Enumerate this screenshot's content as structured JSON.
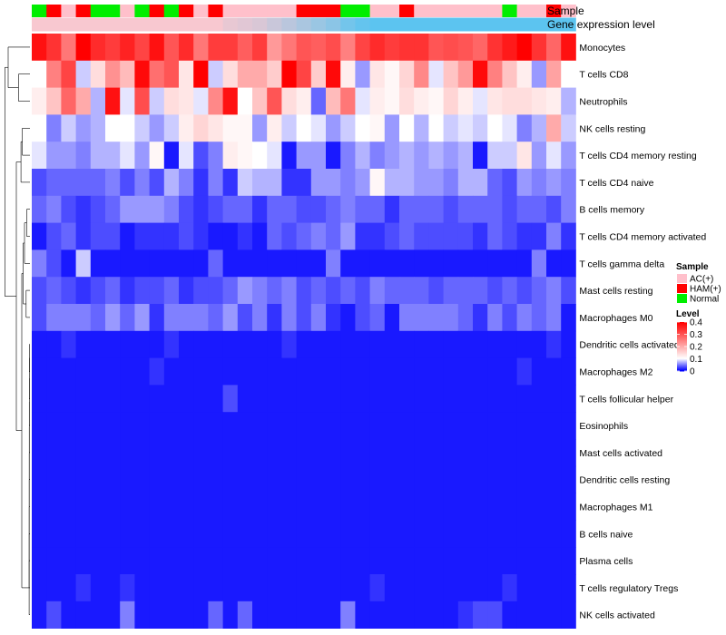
{
  "chart_data": {
    "type": "heatmap",
    "title": "",
    "xlabel": "",
    "ylabel": "",
    "annotation_labels": {
      "sample": "Sample",
      "gene_expression": "Gene expression level"
    },
    "legend": {
      "sample_title": "Sample",
      "sample_entries": [
        {
          "name": "AC(+)",
          "color": "#ffc0cb"
        },
        {
          "name": "HAM(+)",
          "color": "#ff0000"
        },
        {
          "name": "Normal",
          "color": "#00ee00"
        }
      ],
      "level_title": "Level",
      "level_ticks": [
        "0.4",
        "0.3",
        "0.2",
        "0.1",
        "0"
      ],
      "scale": {
        "min": 0,
        "max": 0.4,
        "low_color": "#0000ff",
        "mid_value": 0.1,
        "mid_color": "#ffffff",
        "high_color": "#ff0000"
      }
    },
    "sample_groups": [
      "Normal",
      "HAM(+)",
      "AC(+)",
      "HAM(+)",
      "Normal",
      "Normal",
      "AC(+)",
      "Normal",
      "HAM(+)",
      "Normal",
      "HAM(+)",
      "AC(+)",
      "HAM(+)",
      "AC(+)",
      "AC(+)",
      "AC(+)",
      "AC(+)",
      "AC(+)",
      "HAM(+)",
      "HAM(+)",
      "HAM(+)",
      "Normal",
      "Normal",
      "AC(+)",
      "AC(+)",
      "HAM(+)",
      "AC(+)",
      "AC(+)",
      "AC(+)",
      "AC(+)",
      "AC(+)",
      "AC(+)",
      "Normal",
      "AC(+)",
      "AC(+)",
      "HAM(+)",
      "AC(+)"
    ],
    "rows": [
      {
        "name": "Monocytes",
        "values": [
          0.38,
          0.34,
          0.26,
          0.4,
          0.35,
          0.33,
          0.36,
          0.32,
          0.38,
          0.3,
          0.35,
          0.26,
          0.33,
          0.33,
          0.29,
          0.33,
          0.22,
          0.26,
          0.3,
          0.29,
          0.31,
          0.25,
          0.32,
          0.35,
          0.33,
          0.34,
          0.34,
          0.3,
          0.31,
          0.3,
          0.28,
          0.34,
          0.37,
          0.4,
          0.34,
          0.28,
          0.38
        ]
      },
      {
        "name": "T cells CD8",
        "values": [
          0.1,
          0.25,
          0.32,
          0.08,
          0.14,
          0.23,
          0.18,
          0.39,
          0.27,
          0.3,
          0.13,
          0.4,
          0.08,
          0.14,
          0.2,
          0.2,
          0.16,
          0.4,
          0.32,
          0.16,
          0.39,
          0.12,
          0.06,
          0.13,
          0.11,
          0.15,
          0.24,
          0.09,
          0.17,
          0.22,
          0.39,
          0.25,
          0.17,
          0.12,
          0.06,
          0.21,
          0.1
        ]
      },
      {
        "name": "Neutrophils",
        "values": [
          0.12,
          0.17,
          0.28,
          0.2,
          0.07,
          0.38,
          0.09,
          0.31,
          0.08,
          0.14,
          0.13,
          0.09,
          0.24,
          0.38,
          0.1,
          0.17,
          0.3,
          0.14,
          0.12,
          0.04,
          0.18,
          0.26,
          0.09,
          0.12,
          0.11,
          0.14,
          0.12,
          0.11,
          0.15,
          0.12,
          0.09,
          0.13,
          0.14,
          0.14,
          0.13,
          0.12,
          0.07
        ]
      },
      {
        "name": "NK cells resting",
        "values": [
          0.1,
          0.05,
          0.08,
          0.06,
          0.07,
          0.1,
          0.1,
          0.08,
          0.06,
          0.08,
          0.12,
          0.15,
          0.13,
          0.11,
          0.11,
          0.06,
          0.12,
          0.08,
          0.1,
          0.09,
          0.06,
          0.08,
          0.1,
          0.11,
          0.06,
          0.1,
          0.07,
          0.1,
          0.08,
          0.09,
          0.08,
          0.1,
          0.09,
          0.05,
          0.07,
          0.2,
          0.08
        ]
      },
      {
        "name": "T cells CD4 memory resting",
        "values": [
          0.09,
          0.06,
          0.06,
          0.05,
          0.07,
          0.07,
          0.09,
          0.06,
          0.11,
          0.01,
          0.09,
          0.03,
          0.05,
          0.12,
          0.11,
          0.1,
          0.09,
          0.01,
          0.06,
          0.06,
          0.01,
          0.05,
          0.07,
          0.05,
          0.06,
          0.07,
          0.06,
          0.07,
          0.06,
          0.07,
          0.01,
          0.08,
          0.08,
          0.13,
          0.06,
          0.09,
          0.06
        ]
      },
      {
        "name": "T cells CD4 naive",
        "values": [
          0.03,
          0.04,
          0.04,
          0.04,
          0.04,
          0.05,
          0.03,
          0.05,
          0.03,
          0.07,
          0.05,
          0.02,
          0.05,
          0.02,
          0.08,
          0.07,
          0.07,
          0.02,
          0.02,
          0.06,
          0.06,
          0.05,
          0.06,
          0.11,
          0.07,
          0.07,
          0.06,
          0.06,
          0.05,
          0.07,
          0.07,
          0.04,
          0.03,
          0.06,
          0.05,
          0.06,
          0.05
        ]
      },
      {
        "name": "B cells memory",
        "values": [
          0.04,
          0.05,
          0.03,
          0.02,
          0.03,
          0.04,
          0.06,
          0.06,
          0.06,
          0.05,
          0.03,
          0.02,
          0.03,
          0.04,
          0.04,
          0.02,
          0.04,
          0.04,
          0.03,
          0.03,
          0.04,
          0.05,
          0.04,
          0.04,
          0.02,
          0.04,
          0.04,
          0.04,
          0.03,
          0.04,
          0.04,
          0.04,
          0.03,
          0.04,
          0.04,
          0.03,
          0.05
        ]
      },
      {
        "name": "T cells CD4 memory activated",
        "values": [
          0.01,
          0.03,
          0.04,
          0.02,
          0.03,
          0.03,
          0.01,
          0.02,
          0.02,
          0.02,
          0.03,
          0.02,
          0.01,
          0.01,
          0.02,
          0.01,
          0.04,
          0.03,
          0.04,
          0.05,
          0.04,
          0.06,
          0.02,
          0.02,
          0.03,
          0.04,
          0.03,
          0.03,
          0.03,
          0.03,
          0.02,
          0.04,
          0.03,
          0.02,
          0.02,
          0.05,
          0.02
        ]
      },
      {
        "name": "T cells gamma delta",
        "values": [
          0.05,
          0.03,
          0.01,
          0.08,
          0.01,
          0.01,
          0.01,
          0.01,
          0.01,
          0.01,
          0.01,
          0.01,
          0.04,
          0.01,
          0.01,
          0.01,
          0.01,
          0.01,
          0.01,
          0.01,
          0.05,
          0.01,
          0.01,
          0.01,
          0.01,
          0.01,
          0.01,
          0.01,
          0.01,
          0.01,
          0.01,
          0.01,
          0.01,
          0.01,
          0.05,
          0.01,
          0.01
        ]
      },
      {
        "name": "Mast cells resting",
        "values": [
          0.03,
          0.04,
          0.03,
          0.02,
          0.03,
          0.04,
          0.02,
          0.03,
          0.03,
          0.04,
          0.02,
          0.03,
          0.03,
          0.04,
          0.06,
          0.05,
          0.04,
          0.05,
          0.03,
          0.04,
          0.03,
          0.04,
          0.03,
          0.05,
          0.04,
          0.04,
          0.04,
          0.03,
          0.04,
          0.04,
          0.04,
          0.03,
          0.04,
          0.03,
          0.04,
          0.05,
          0.03
        ]
      },
      {
        "name": "Macrophages M0",
        "values": [
          0.03,
          0.05,
          0.05,
          0.05,
          0.04,
          0.06,
          0.04,
          0.06,
          0.02,
          0.05,
          0.05,
          0.05,
          0.04,
          0.06,
          0.03,
          0.05,
          0.02,
          0.05,
          0.03,
          0.05,
          0.02,
          0.01,
          0.03,
          0.04,
          0.01,
          0.05,
          0.05,
          0.05,
          0.05,
          0.04,
          0.02,
          0.05,
          0.03,
          0.05,
          0.04,
          0.05,
          0.01
        ]
      },
      {
        "name": "Dendritic cells activated",
        "values": [
          0.01,
          0.01,
          0.02,
          0.01,
          0.01,
          0.01,
          0.01,
          0.01,
          0.01,
          0.02,
          0.01,
          0.01,
          0.01,
          0.01,
          0.01,
          0.01,
          0.01,
          0.02,
          0.01,
          0.01,
          0.01,
          0.01,
          0.01,
          0.01,
          0.01,
          0.01,
          0.01,
          0.01,
          0.01,
          0.01,
          0.01,
          0.01,
          0.01,
          0.01,
          0.01,
          0.02,
          0.01
        ]
      },
      {
        "name": "Macrophages M2",
        "values": [
          0.01,
          0.01,
          0.01,
          0.01,
          0.01,
          0.01,
          0.01,
          0.01,
          0.02,
          0.01,
          0.01,
          0.01,
          0.01,
          0.01,
          0.01,
          0.01,
          0.01,
          0.01,
          0.01,
          0.01,
          0.01,
          0.01,
          0.01,
          0.01,
          0.01,
          0.01,
          0.01,
          0.01,
          0.01,
          0.01,
          0.01,
          0.01,
          0.01,
          0.02,
          0.01,
          0.01,
          0.01
        ]
      },
      {
        "name": "T cells follicular helper",
        "values": [
          0.01,
          0.01,
          0.01,
          0.01,
          0.01,
          0.01,
          0.01,
          0.01,
          0.01,
          0.01,
          0.01,
          0.01,
          0.01,
          0.03,
          0.01,
          0.01,
          0.01,
          0.01,
          0.01,
          0.01,
          0.01,
          0.01,
          0.01,
          0.01,
          0.01,
          0.01,
          0.01,
          0.01,
          0.01,
          0.01,
          0.01,
          0.01,
          0.01,
          0.01,
          0.01,
          0.01,
          0.01
        ]
      },
      {
        "name": "Eosinophils",
        "values": [
          0.01,
          0.01,
          0.01,
          0.01,
          0.01,
          0.01,
          0.01,
          0.01,
          0.01,
          0.01,
          0.01,
          0.01,
          0.01,
          0.01,
          0.01,
          0.01,
          0.01,
          0.01,
          0.01,
          0.01,
          0.01,
          0.01,
          0.01,
          0.01,
          0.01,
          0.01,
          0.01,
          0.01,
          0.01,
          0.01,
          0.01,
          0.01,
          0.01,
          0.01,
          0.01,
          0.01,
          0.01
        ]
      },
      {
        "name": "Mast cells activated",
        "values": [
          0.01,
          0.01,
          0.01,
          0.01,
          0.01,
          0.01,
          0.01,
          0.01,
          0.01,
          0.01,
          0.01,
          0.01,
          0.01,
          0.01,
          0.01,
          0.01,
          0.01,
          0.01,
          0.01,
          0.01,
          0.01,
          0.01,
          0.01,
          0.01,
          0.01,
          0.01,
          0.01,
          0.01,
          0.01,
          0.01,
          0.01,
          0.01,
          0.01,
          0.01,
          0.01,
          0.01,
          0.01
        ]
      },
      {
        "name": "Dendritic cells resting",
        "values": [
          0.01,
          0.01,
          0.01,
          0.01,
          0.01,
          0.01,
          0.01,
          0.01,
          0.01,
          0.01,
          0.01,
          0.01,
          0.01,
          0.01,
          0.01,
          0.01,
          0.01,
          0.01,
          0.01,
          0.01,
          0.01,
          0.01,
          0.01,
          0.01,
          0.01,
          0.01,
          0.01,
          0.01,
          0.01,
          0.01,
          0.01,
          0.01,
          0.01,
          0.01,
          0.01,
          0.01,
          0.01
        ]
      },
      {
        "name": "Macrophages M1",
        "values": [
          0.01,
          0.01,
          0.01,
          0.01,
          0.01,
          0.01,
          0.01,
          0.01,
          0.01,
          0.01,
          0.01,
          0.01,
          0.01,
          0.01,
          0.01,
          0.01,
          0.01,
          0.01,
          0.01,
          0.01,
          0.01,
          0.01,
          0.01,
          0.01,
          0.01,
          0.01,
          0.01,
          0.01,
          0.01,
          0.01,
          0.01,
          0.01,
          0.01,
          0.01,
          0.01,
          0.01,
          0.01
        ]
      },
      {
        "name": "B cells naive",
        "values": [
          0.01,
          0.01,
          0.01,
          0.01,
          0.01,
          0.01,
          0.01,
          0.01,
          0.01,
          0.01,
          0.01,
          0.01,
          0.01,
          0.01,
          0.01,
          0.01,
          0.01,
          0.01,
          0.01,
          0.01,
          0.01,
          0.01,
          0.01,
          0.01,
          0.01,
          0.01,
          0.01,
          0.01,
          0.01,
          0.01,
          0.01,
          0.01,
          0.01,
          0.01,
          0.01,
          0.01,
          0.01
        ]
      },
      {
        "name": "Plasma cells",
        "values": [
          0.01,
          0.01,
          0.01,
          0.01,
          0.01,
          0.01,
          0.01,
          0.01,
          0.01,
          0.01,
          0.01,
          0.01,
          0.01,
          0.01,
          0.01,
          0.01,
          0.01,
          0.01,
          0.01,
          0.01,
          0.01,
          0.01,
          0.01,
          0.01,
          0.01,
          0.01,
          0.01,
          0.01,
          0.01,
          0.01,
          0.01,
          0.01,
          0.01,
          0.01,
          0.01,
          0.01,
          0.01
        ]
      },
      {
        "name": "T cells regulatory  Tregs",
        "values": [
          0.01,
          0.01,
          0.01,
          0.02,
          0.01,
          0.01,
          0.02,
          0.01,
          0.01,
          0.01,
          0.01,
          0.01,
          0.01,
          0.01,
          0.01,
          0.01,
          0.01,
          0.01,
          0.01,
          0.01,
          0.01,
          0.01,
          0.01,
          0.02,
          0.01,
          0.01,
          0.01,
          0.01,
          0.01,
          0.01,
          0.01,
          0.01,
          0.02,
          0.01,
          0.01,
          0.01,
          0.01
        ]
      },
      {
        "name": "NK cells activated",
        "values": [
          0.01,
          0.03,
          0.01,
          0.01,
          0.01,
          0.01,
          0.05,
          0.01,
          0.01,
          0.01,
          0.01,
          0.01,
          0.04,
          0.01,
          0.04,
          0.01,
          0.01,
          0.01,
          0.01,
          0.01,
          0.01,
          0.05,
          0.01,
          0.01,
          0.01,
          0.01,
          0.01,
          0.01,
          0.01,
          0.02,
          0.03,
          0.03,
          0.01,
          0.01,
          0.01,
          0.01,
          0.01
        ]
      }
    ],
    "gene_expression_bar": [
      0.18,
      0.18,
      0.18,
      0.18,
      0.18,
      0.18,
      0.18,
      0.18,
      0.18,
      0.18,
      0.18,
      0.18,
      0.18,
      0.2,
      0.21,
      0.22,
      0.24,
      0.26,
      0.28,
      0.3,
      0.32,
      0.35,
      0.37,
      0.38,
      0.38,
      0.38,
      0.38,
      0.38,
      0.38,
      0.38,
      0.38,
      0.38,
      0.38,
      0.38,
      0.38,
      0.38,
      0.38
    ]
  }
}
